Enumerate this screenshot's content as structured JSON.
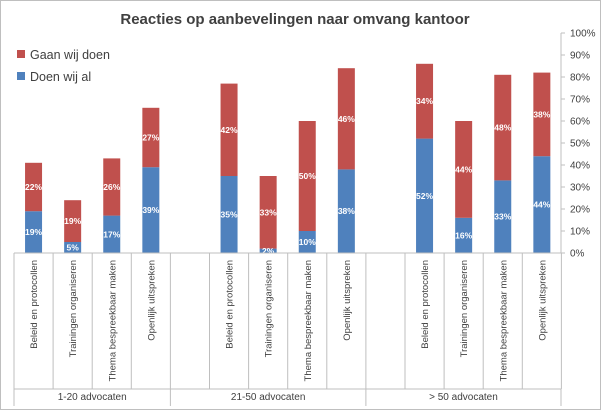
{
  "chart_data": {
    "type": "bar",
    "stacked": true,
    "title": "Reacties op aanbevelingen naar omvang kantoor",
    "ylim": [
      0,
      100
    ],
    "y_axis_position": "right",
    "y_ticks": [
      "0%",
      "10%",
      "20%",
      "30%",
      "40%",
      "50%",
      "60%",
      "70%",
      "80%",
      "90%",
      "100%"
    ],
    "legend_position": "top-left",
    "grid": false,
    "groups": [
      {
        "name": "1-20 advocaten",
        "categories": [
          "Beleid en protocollen",
          "Trainingen organiseren",
          "Thema bespreekbaar maken",
          "Openlijk uitspreken"
        ]
      },
      {
        "name": "21-50 advocaten",
        "categories": [
          "Beleid en protocollen",
          "Trainingen organiseren",
          "Thema bespreekbaar maken",
          "Openlijk uitspreken"
        ]
      },
      {
        "name": "> 50 advocaten",
        "categories": [
          "Beleid en protocollen",
          "Trainingen organiseren",
          "Thema bespreekbaar maken",
          "Openlijk uitspreken"
        ]
      }
    ],
    "series": [
      {
        "name": "Doen wij al",
        "color": "#4f81bd",
        "values": [
          [
            19,
            5,
            17,
            39
          ],
          [
            35,
            2,
            10,
            38
          ],
          [
            52,
            16,
            33,
            44
          ]
        ],
        "labels": [
          [
            "19%",
            "5%",
            "17%",
            "39%"
          ],
          [
            "35%",
            "2%",
            "10%",
            "38%"
          ],
          [
            "52%",
            "16%",
            "33%",
            "44%"
          ]
        ]
      },
      {
        "name": "Gaan wij doen",
        "color": "#c0504d",
        "values": [
          [
            22,
            19,
            26,
            27
          ],
          [
            42,
            33,
            50,
            46
          ],
          [
            34,
            44,
            48,
            38
          ]
        ],
        "labels": [
          [
            "22%",
            "19%",
            "26%",
            "27%"
          ],
          [
            "42%",
            "33%",
            "50%",
            "46%"
          ],
          [
            "34%",
            "44%",
            "48%",
            "38%"
          ]
        ]
      }
    ]
  }
}
